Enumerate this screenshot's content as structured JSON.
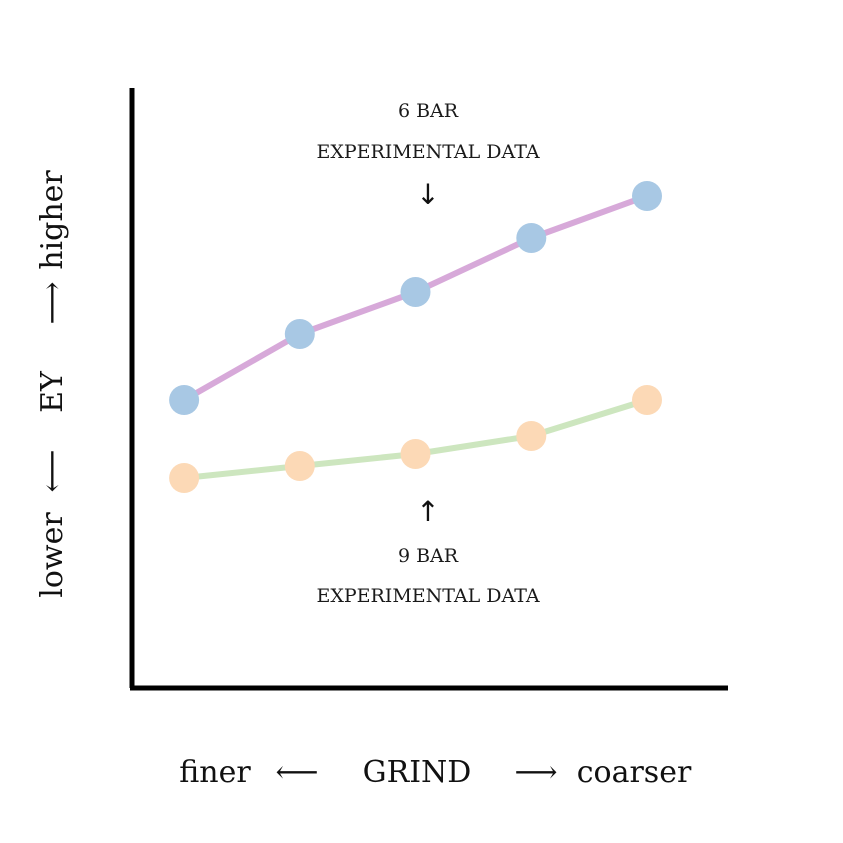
{
  "chart_data": {
    "type": "line",
    "title": "",
    "xlabel": "GRIND",
    "ylabel": "EY",
    "x_axis": {
      "label": "GRIND",
      "low_label": "finer",
      "high_label": "coarser",
      "arrow_left": "⟵",
      "arrow_right": "⟶"
    },
    "y_axis": {
      "label": "EY",
      "low_label": "lower",
      "high_label": "higher",
      "arrow_low": "⟵",
      "arrow_high": "⟶"
    },
    "x": [
      1,
      2,
      3,
      4,
      5
    ],
    "xlim": [
      0.55,
      5.7
    ],
    "ylim": [
      0,
      10
    ],
    "grid": false,
    "legend": "none",
    "series": [
      {
        "name": "6 BAR EXPERIMENTAL DATA",
        "values": [
          4.8,
          5.9,
          6.6,
          7.5,
          8.2
        ],
        "line_color": "#d7a9d9",
        "marker_color": "#a8c8e4"
      },
      {
        "name": "9 BAR EXPERIMENTAL DATA",
        "values": [
          3.5,
          3.7,
          3.9,
          4.2,
          4.8
        ],
        "line_color": "#cde6bf",
        "marker_color": "#fcd9b6"
      }
    ],
    "annotations": [
      {
        "line1": "6 BAR",
        "line2": "EXPERIMENTAL DATA",
        "arrow": "↓",
        "series_index": 0
      },
      {
        "line1": "9 BAR",
        "line2": "EXPERIMENTAL DATA",
        "arrow": "↑",
        "series_index": 1
      }
    ]
  },
  "colors": {
    "axis": "#000000",
    "text": "#111111",
    "background": "#ffffff"
  }
}
